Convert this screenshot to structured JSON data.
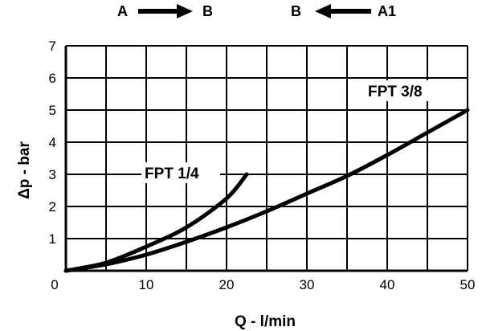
{
  "chart_data": {
    "type": "line",
    "xlabel": "Q - l/min",
    "ylabel": "Δp - bar",
    "xlim": [
      0,
      50
    ],
    "ylim": [
      0,
      7
    ],
    "grid": true,
    "x_ticks": [
      "0",
      "10",
      "20",
      "30",
      "40",
      "50"
    ],
    "y_ticks": [
      "1",
      "2",
      "3",
      "4",
      "5",
      "6",
      "7"
    ],
    "flow_directions": [
      {
        "from": "A",
        "to": "B"
      },
      {
        "from": "A1",
        "to": "B"
      }
    ],
    "series": [
      {
        "name": "FPT 1/4",
        "points": [
          [
            0,
            0
          ],
          [
            5,
            0.25
          ],
          [
            10,
            0.75
          ],
          [
            15,
            1.35
          ],
          [
            20,
            2.25
          ],
          [
            22.5,
            3.0
          ]
        ]
      },
      {
        "name": "FPT 3/8",
        "points": [
          [
            0,
            0
          ],
          [
            5,
            0.2
          ],
          [
            10,
            0.5
          ],
          [
            15,
            0.9
          ],
          [
            20,
            1.35
          ],
          [
            25,
            1.85
          ],
          [
            30,
            2.4
          ],
          [
            35,
            2.95
          ],
          [
            40,
            3.6
          ],
          [
            45,
            4.3
          ],
          [
            50,
            5.0
          ]
        ]
      }
    ]
  }
}
